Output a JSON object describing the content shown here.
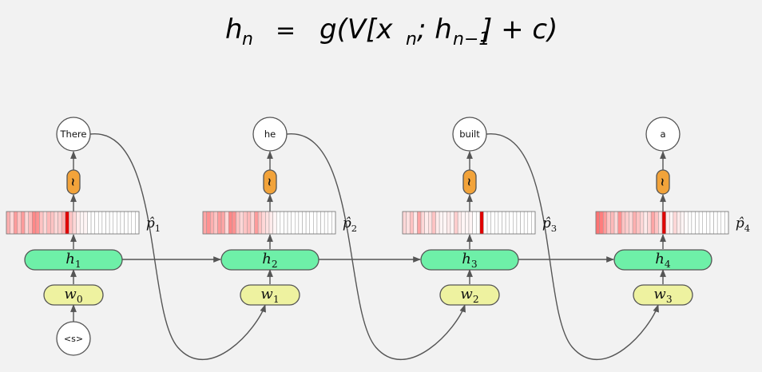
{
  "equation": {
    "lhs": "h",
    "lhs_sub": "n",
    "equals": "=",
    "rhs_parts": [
      "g(V[x",
      "n",
      "; h",
      "n−1",
      "] + c)"
    ]
  },
  "start_token": "<s>",
  "sampler_symbol": "~",
  "colors": {
    "background": "#f2f2f2",
    "hidden_fill": "#6ef0a8",
    "word_fill": "#eef2a0",
    "sampler_fill": "#f2a33a",
    "peak_red": "#e00000",
    "edge": "#555555"
  },
  "steps": [
    {
      "output_word": "There",
      "hidden_label": "h",
      "hidden_sub": "1",
      "input_label": "w",
      "input_sub": "0",
      "prob_label": "p̂",
      "prob_sub": "1",
      "distribution": [
        0.4,
        0.2,
        0.5,
        0.3,
        0.5,
        0.2,
        0.35,
        0.6,
        0.55,
        0.3,
        0.2,
        0.35,
        0.3,
        0.2,
        0.25,
        0.4,
        1.0,
        0.3,
        0.2,
        0.1,
        0.05,
        0.05,
        0,
        0,
        0,
        0,
        0,
        0,
        0,
        0,
        0,
        0,
        0,
        0,
        0,
        0
      ]
    },
    {
      "output_word": "he",
      "hidden_label": "h",
      "hidden_sub": "2",
      "input_label": "w",
      "input_sub": "1",
      "prob_label": "p̂",
      "prob_sub": "2",
      "distribution": [
        0.45,
        0.55,
        0.4,
        0.3,
        0.5,
        0.45,
        0.2,
        0.6,
        0.55,
        0.3,
        0.2,
        0.3,
        0.35,
        0.2,
        0.5,
        0.3,
        0.2,
        0.15,
        0.1,
        0.05,
        0,
        0,
        0,
        0,
        0,
        0,
        0,
        0,
        0,
        0,
        0,
        0,
        0,
        0,
        0,
        0
      ]
    },
    {
      "output_word": "built",
      "hidden_label": "h",
      "hidden_sub": "3",
      "input_label": "w",
      "input_sub": "2",
      "prob_label": "p̂",
      "prob_sub": "3",
      "distribution": [
        0.2,
        0.15,
        0.3,
        0.1,
        0.45,
        0.2,
        0.1,
        0.15,
        0.3,
        0.1,
        0.05,
        0.05,
        0.1,
        0.05,
        0.25,
        0.1,
        0.05,
        0.05,
        0.05,
        0,
        0,
        1.0,
        0,
        0,
        0,
        0,
        0,
        0,
        0,
        0,
        0,
        0,
        0,
        0,
        0,
        0
      ]
    },
    {
      "output_word": "a",
      "hidden_label": "h",
      "hidden_sub": "4",
      "input_label": "w",
      "input_sub": "3",
      "prob_label": "p̂",
      "prob_sub": "4",
      "distribution": [
        0.7,
        0.65,
        0.5,
        0.3,
        0.35,
        0.2,
        0.55,
        0.3,
        0.25,
        0.2,
        0.4,
        0.3,
        0.2,
        0.1,
        0.2,
        0.45,
        0.3,
        0.15,
        0.95,
        0.1,
        0.05,
        0.2,
        0.1,
        0.05,
        0.02,
        0,
        0,
        0,
        0,
        0,
        0,
        0,
        0,
        0,
        0,
        0
      ]
    }
  ]
}
